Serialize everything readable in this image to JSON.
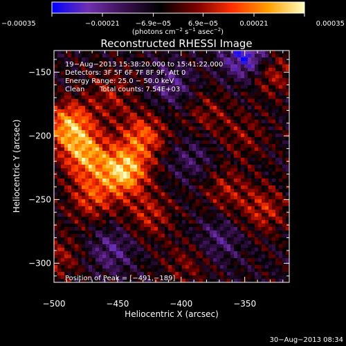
{
  "chart_data": {
    "type": "heatmap",
    "title": "Reconstructed RHESSI Image",
    "xlabel": "Heliocentric X (arcsec)",
    "ylabel": "Heliocentric Y (arcsec)",
    "xlim": [
      -500,
      -315
    ],
    "ylim": [
      -315,
      -133
    ],
    "x_ticks": [
      {
        "value": -500,
        "label": "−500"
      },
      {
        "value": -450,
        "label": "−450"
      },
      {
        "value": -400,
        "label": "−400"
      },
      {
        "value": -350,
        "label": "−350"
      }
    ],
    "y_ticks": [
      {
        "value": -150,
        "label": "−150"
      },
      {
        "value": -200,
        "label": "−200"
      },
      {
        "value": -250,
        "label": "−250"
      },
      {
        "value": -300,
        "label": "−300"
      }
    ],
    "colorbar": {
      "range": [
        -0.00035,
        0.00035
      ],
      "ticks": [
        {
          "value": -0.00035,
          "label": "−0.00035"
        },
        {
          "value": -0.00021,
          "label": "−0.00021"
        },
        {
          "value": -6.9e-05,
          "label": "−6.9e−05"
        },
        {
          "value": 6.9e-05,
          "label": "6.9e−05"
        },
        {
          "value": 0.00021,
          "label": "0.00021"
        },
        {
          "value": 0.00035,
          "label": "0.00035"
        }
      ],
      "unit_main": "(photons cm",
      "unit_exp1": "−2",
      "unit_mid": " s",
      "unit_exp2": "−1",
      "unit_end": " asec",
      "unit_exp3": "−2",
      "unit_close": ")",
      "colors": [
        "#0000ff",
        "#7030b0",
        "#3a1050",
        "#000000",
        "#7a0000",
        "#ff3000",
        "#ffa000",
        "#ffffc0"
      ]
    },
    "peak": {
      "x": -491,
      "y": -189
    },
    "sources": [
      {
        "x": -445,
        "y": -228,
        "amp": 0.00034
      },
      {
        "x": -488,
        "y": -192,
        "amp": 0.0003
      },
      {
        "x": -475,
        "y": -215,
        "amp": 0.00027
      },
      {
        "x": -430,
        "y": -200,
        "amp": 0.00022
      },
      {
        "x": -470,
        "y": -248,
        "amp": 0.00018
      },
      {
        "x": -425,
        "y": -262,
        "amp": 0.00014
      },
      {
        "x": -455,
        "y": -168,
        "amp": 0.00012
      },
      {
        "x": -330,
        "y": -150,
        "amp": 0.00016
      },
      {
        "x": -335,
        "y": -258,
        "amp": 0.00015
      },
      {
        "x": -365,
        "y": -242,
        "amp": 0.00012
      },
      {
        "x": -380,
        "y": -182,
        "amp": 0.0001
      },
      {
        "x": -350,
        "y": -200,
        "amp": 9e-05
      },
      {
        "x": -495,
        "y": -295,
        "amp": 0.00011
      },
      {
        "x": -395,
        "y": -300,
        "amp": 9e-05
      },
      {
        "x": -348,
        "y": -138,
        "amp": -0.00026
      },
      {
        "x": -408,
        "y": -160,
        "amp": -0.00012
      },
      {
        "x": -455,
        "y": -290,
        "amp": -0.00013
      },
      {
        "x": -370,
        "y": -282,
        "amp": -0.00011
      },
      {
        "x": -392,
        "y": -218,
        "amp": -9e-05
      }
    ]
  },
  "overlay": {
    "time_range": "19−Aug−2013 15:38:20.000 to 15:41:22.000",
    "detectors": "Detectors: 3F 5F 6F 7F 8F 9F, Att 0",
    "energy": "Energy Range: 25.0 − 50.0 keV",
    "clean_label": "Clean",
    "total_counts": "Total counts: 7.54E+03",
    "peak_text": "Position of Peak = [−491,−189]"
  },
  "footer": {
    "date": "30−Aug−2013 08:34"
  }
}
